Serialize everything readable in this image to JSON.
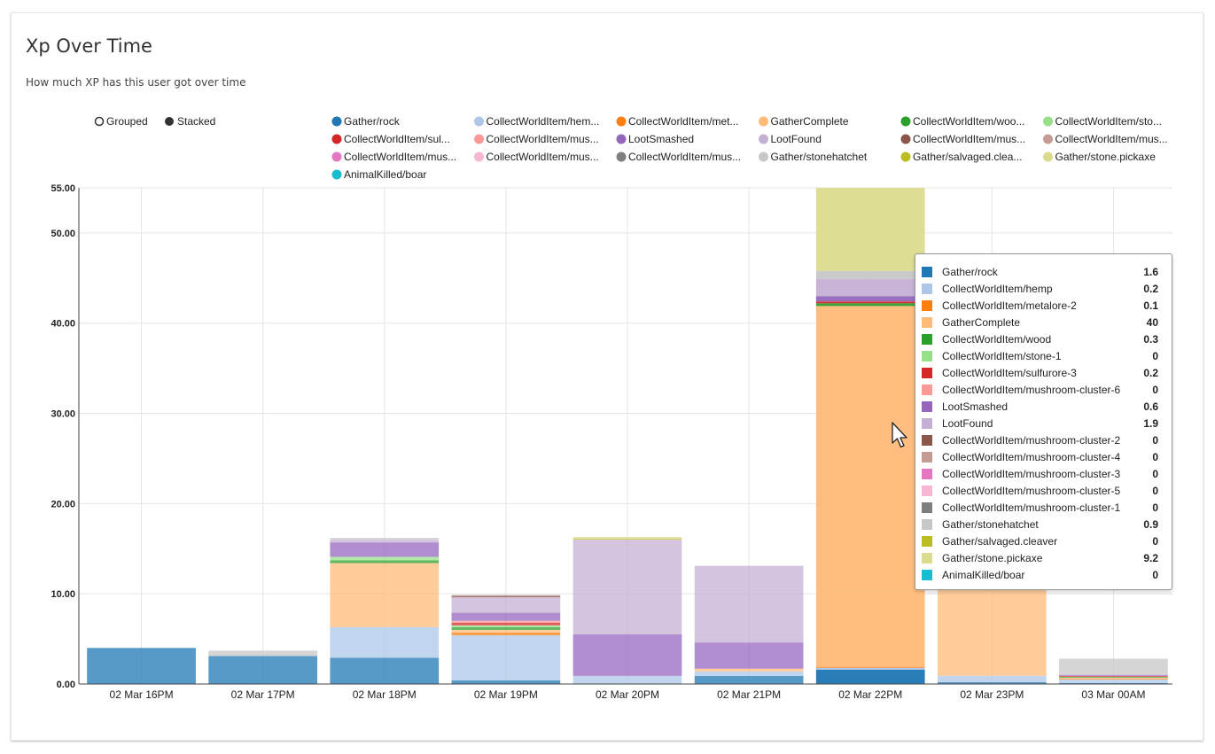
{
  "panel": {
    "title": "Xp Over Time",
    "subtitle": "How much XP has this user got over time"
  },
  "controls": {
    "grouped_label": "Grouped",
    "stacked_label": "Stacked",
    "mode": "stacked"
  },
  "legend": [
    {
      "label": "Gather/rock",
      "color": "#1f77b4"
    },
    {
      "label": "CollectWorldItem/hem...",
      "color": "#aec7e8"
    },
    {
      "label": "CollectWorldItem/met...",
      "color": "#ff7f0e"
    },
    {
      "label": "GatherComplete",
      "color": "#ffbb78"
    },
    {
      "label": "CollectWorldItem/woo...",
      "color": "#2ca02c"
    },
    {
      "label": "CollectWorldItem/sto...",
      "color": "#98df8a"
    },
    {
      "label": "CollectWorldItem/sul...",
      "color": "#d62728"
    },
    {
      "label": "CollectWorldItem/mus...",
      "color": "#ff9896"
    },
    {
      "label": "LootSmashed",
      "color": "#9467bd"
    },
    {
      "label": "LootFound",
      "color": "#c5b0d5"
    },
    {
      "label": "CollectWorldItem/mus...",
      "color": "#8c564b"
    },
    {
      "label": "CollectWorldItem/mus...",
      "color": "#c49c94"
    },
    {
      "label": "CollectWorldItem/mus...",
      "color": "#e377c2"
    },
    {
      "label": "CollectWorldItem/mus...",
      "color": "#f7b6d2"
    },
    {
      "label": "CollectWorldItem/mus...",
      "color": "#7f7f7f"
    },
    {
      "label": "Gather/stonehatchet",
      "color": "#c7c7c7"
    },
    {
      "label": "Gather/salvaged.clea...",
      "color": "#bcbd22"
    },
    {
      "label": "Gather/stone.pickaxe",
      "color": "#dbdb8d"
    },
    {
      "label": "AnimalKilled/boar",
      "color": "#17becf"
    }
  ],
  "tooltip": {
    "rows": [
      {
        "key": "Gather/rock",
        "value": "1.6",
        "color": "#1f77b4"
      },
      {
        "key": "CollectWorldItem/hemp",
        "value": "0.2",
        "color": "#aec7e8"
      },
      {
        "key": "CollectWorldItem/metalore-2",
        "value": "0.1",
        "color": "#ff7f0e"
      },
      {
        "key": "GatherComplete",
        "value": "40",
        "color": "#ffbb78"
      },
      {
        "key": "CollectWorldItem/wood",
        "value": "0.3",
        "color": "#2ca02c"
      },
      {
        "key": "CollectWorldItem/stone-1",
        "value": "0",
        "color": "#98df8a"
      },
      {
        "key": "CollectWorldItem/sulfurore-3",
        "value": "0.2",
        "color": "#d62728"
      },
      {
        "key": "CollectWorldItem/mushroom-cluster-6",
        "value": "0",
        "color": "#ff9896"
      },
      {
        "key": "LootSmashed",
        "value": "0.6",
        "color": "#9467bd"
      },
      {
        "key": "LootFound",
        "value": "1.9",
        "color": "#c5b0d5"
      },
      {
        "key": "CollectWorldItem/mushroom-cluster-2",
        "value": "0",
        "color": "#8c564b"
      },
      {
        "key": "CollectWorldItem/mushroom-cluster-4",
        "value": "0",
        "color": "#c49c94"
      },
      {
        "key": "CollectWorldItem/mushroom-cluster-3",
        "value": "0",
        "color": "#e377c2"
      },
      {
        "key": "CollectWorldItem/mushroom-cluster-5",
        "value": "0",
        "color": "#f7b6d2"
      },
      {
        "key": "CollectWorldItem/mushroom-cluster-1",
        "value": "0",
        "color": "#7f7f7f"
      },
      {
        "key": "Gather/stonehatchet",
        "value": "0.9",
        "color": "#c7c7c7"
      },
      {
        "key": "Gather/salvaged.cleaver",
        "value": "0",
        "color": "#bcbd22"
      },
      {
        "key": "Gather/stone.pickaxe",
        "value": "9.2",
        "color": "#dbdb8d"
      },
      {
        "key": "AnimalKilled/boar",
        "value": "0",
        "color": "#17becf"
      }
    ]
  },
  "chart_data": {
    "type": "bar",
    "stacked": true,
    "title": "Xp Over Time",
    "subtitle": "How much XP has this user got over time",
    "xlabel": "",
    "ylabel": "",
    "ylim": [
      0,
      55
    ],
    "yticks": [
      "0.00",
      "10.00",
      "20.00",
      "30.00",
      "40.00",
      "50.00",
      "55.00"
    ],
    "ytick_values": [
      0,
      10,
      20,
      30,
      40,
      50,
      55
    ],
    "grid": true,
    "legend_position": "top",
    "highlighted_category": "02 Mar 22PM",
    "categories": [
      "02 Mar 16PM",
      "02 Mar 17PM",
      "02 Mar 18PM",
      "02 Mar 19PM",
      "02 Mar 20PM",
      "02 Mar 21PM",
      "02 Mar 22PM",
      "02 Mar 23PM",
      "03 Mar 00AM"
    ],
    "series": [
      {
        "name": "Gather/rock",
        "color": "#1f77b4",
        "values": [
          4.0,
          3.1,
          2.9,
          0.4,
          0,
          0.9,
          1.6,
          0.2,
          0.1
        ]
      },
      {
        "name": "CollectWorldItem/hemp",
        "color": "#aec7e8",
        "values": [
          0,
          0,
          3.4,
          5.0,
          0.9,
          0.5,
          0.2,
          0.7,
          0.4
        ]
      },
      {
        "name": "CollectWorldItem/metalore-2",
        "color": "#ff7f0e",
        "values": [
          0,
          0,
          0,
          0.3,
          0,
          0,
          0.1,
          0,
          0.1
        ]
      },
      {
        "name": "GatherComplete",
        "color": "#ffbb78",
        "values": [
          0,
          0,
          7.1,
          0.3,
          0,
          0.3,
          40,
          10.8,
          0.1
        ]
      },
      {
        "name": "CollectWorldItem/wood",
        "color": "#2ca02c",
        "values": [
          0,
          0,
          0.3,
          0.3,
          0,
          0,
          0.3,
          0,
          0.1
        ]
      },
      {
        "name": "CollectWorldItem/stone-1",
        "color": "#98df8a",
        "values": [
          0,
          0,
          0.4,
          0.2,
          0,
          0,
          0,
          0,
          0
        ]
      },
      {
        "name": "CollectWorldItem/sulfurore-3",
        "color": "#d62728",
        "values": [
          0,
          0,
          0,
          0.3,
          0,
          0,
          0.2,
          0,
          0.1
        ]
      },
      {
        "name": "CollectWorldItem/mushroom-cluster-6",
        "color": "#ff9896",
        "values": [
          0,
          0,
          0,
          0.2,
          0,
          0,
          0,
          0,
          0
        ]
      },
      {
        "name": "LootSmashed",
        "color": "#9467bd",
        "values": [
          0,
          0,
          1.6,
          0.9,
          4.6,
          2.9,
          0.6,
          0,
          0.1
        ]
      },
      {
        "name": "LootFound",
        "color": "#c5b0d5",
        "values": [
          0,
          0,
          0.3,
          1.7,
          10.5,
          8.5,
          1.9,
          0,
          0.1
        ]
      },
      {
        "name": "CollectWorldItem/mushroom-cluster-2",
        "color": "#8c564b",
        "values": [
          0,
          0,
          0,
          0.2,
          0,
          0,
          0,
          0,
          0
        ]
      },
      {
        "name": "CollectWorldItem/mushroom-cluster-4",
        "color": "#c49c94",
        "values": [
          0,
          0,
          0,
          0,
          0,
          0,
          0,
          0,
          0
        ]
      },
      {
        "name": "CollectWorldItem/mushroom-cluster-3",
        "color": "#e377c2",
        "values": [
          0,
          0,
          0,
          0,
          0,
          0,
          0,
          0,
          0
        ]
      },
      {
        "name": "CollectWorldItem/mushroom-cluster-5",
        "color": "#f7b6d2",
        "values": [
          0,
          0,
          0,
          0,
          0,
          0,
          0,
          0,
          0
        ]
      },
      {
        "name": "CollectWorldItem/mushroom-cluster-1",
        "color": "#7f7f7f",
        "values": [
          0,
          0,
          0,
          0,
          0,
          0,
          0,
          0,
          0
        ]
      },
      {
        "name": "Gather/stonehatchet",
        "color": "#c7c7c7",
        "values": [
          0,
          0.6,
          0.2,
          0.1,
          0,
          0,
          0.9,
          0.2,
          1.7
        ]
      },
      {
        "name": "Gather/salvaged.cleaver",
        "color": "#bcbd22",
        "values": [
          0,
          0,
          0,
          0,
          0.1,
          0,
          0,
          0,
          0
        ]
      },
      {
        "name": "Gather/stone.pickaxe",
        "color": "#dbdb8d",
        "values": [
          0,
          0,
          0,
          0,
          0.2,
          0,
          9.2,
          0,
          0
        ]
      },
      {
        "name": "AnimalKilled/boar",
        "color": "#17becf",
        "values": [
          0,
          0,
          0,
          0,
          0,
          0,
          0,
          0,
          0
        ]
      }
    ]
  }
}
